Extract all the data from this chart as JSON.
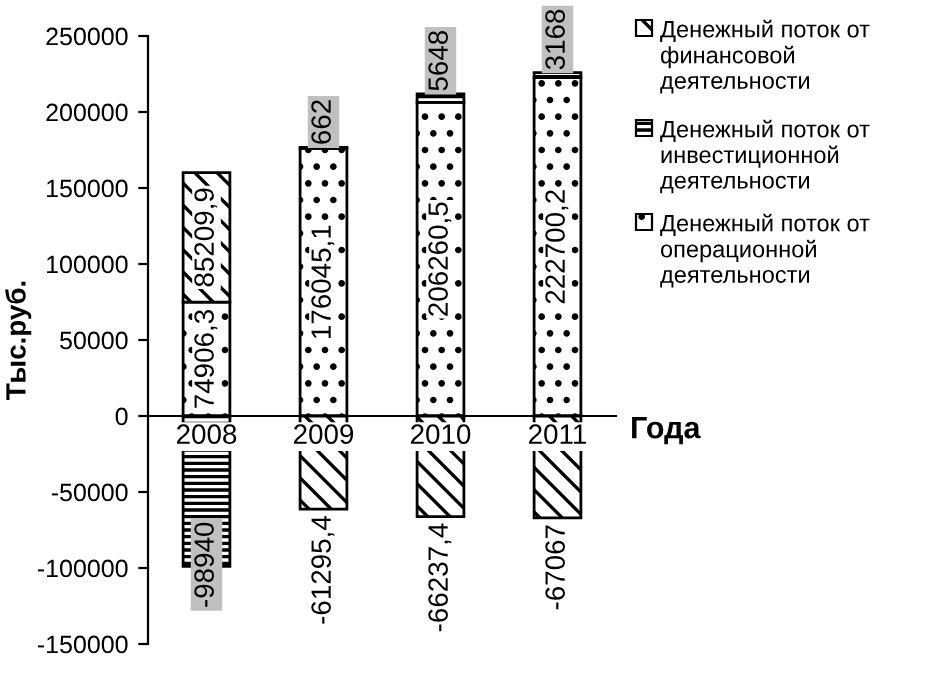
{
  "chart_data": {
    "type": "bar",
    "stacked": true,
    "xlabel": "Года",
    "ylabel": "Тыс.руб.",
    "categories": [
      "2008",
      "2009",
      "2010",
      "2011"
    ],
    "series": [
      {
        "name": "Денежный поток от операционной деятельности",
        "color": "#000000",
        "values": [
          74906.3,
          176045.1,
          206260.5,
          222700.2
        ],
        "value_labels": [
          "74906,3",
          "176045,1",
          "206260,5",
          "222700,2"
        ]
      },
      {
        "name": "Денежный поток от инвестиционной деятельности",
        "color": "#000000",
        "values": [
          -98940,
          662,
          5648,
          3168
        ],
        "value_labels": [
          "-98940",
          "662",
          "5648",
          "3168"
        ]
      },
      {
        "name": "Денежный поток от финансовой деятельности",
        "color": "#000000",
        "values": [
          85209.9,
          -61295.4,
          -66237.4,
          -67067
        ],
        "value_labels": [
          "85209,9",
          "-61295,4",
          "-66237,4",
          "-67067"
        ]
      }
    ],
    "ylim": [
      -150000,
      250000
    ],
    "yticks": [
      -150000,
      -100000,
      -50000,
      0,
      50000,
      100000,
      150000,
      200000,
      250000
    ],
    "grid": false,
    "legend": "right"
  }
}
